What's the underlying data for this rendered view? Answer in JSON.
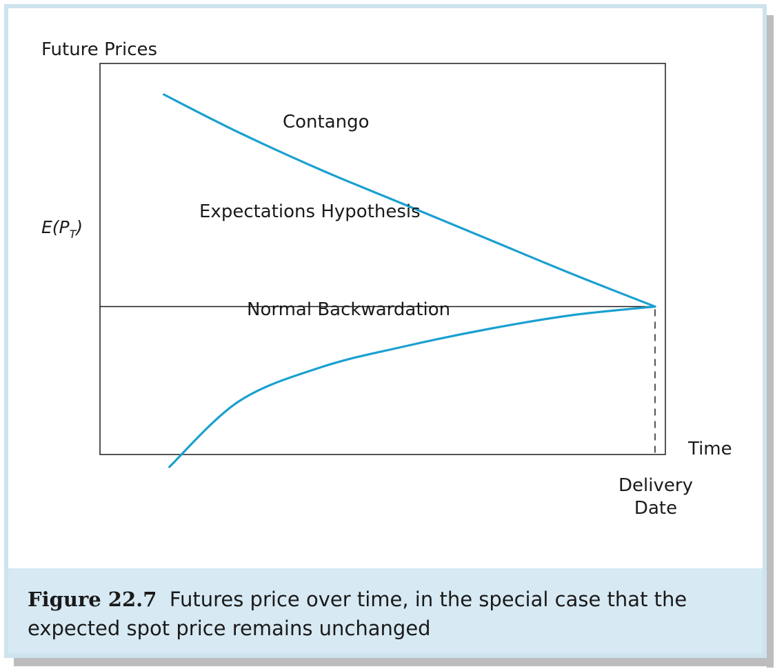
{
  "chart_data": {
    "type": "line",
    "ylabel": "Future Prices",
    "xlabel": "Time",
    "x_tick": "Delivery Date",
    "y_tick": {
      "main": "E(P",
      "sub": "T",
      "close": ")"
    },
    "xlim": [
      0,
      1
    ],
    "ylim": [
      0,
      1
    ],
    "grid": false,
    "series": [
      {
        "name": "Contango",
        "color": "#1aa0d0",
        "x": [
          0.115,
          0.25,
          0.4,
          0.55,
          0.7,
          0.85,
          1.0
        ],
        "y": [
          0.91,
          0.8,
          0.69,
          0.59,
          0.49,
          0.39,
          0.295
        ]
      },
      {
        "name": "Expectations Hypothesis",
        "color": "#1a1a1a",
        "x": [
          0,
          1.0
        ],
        "y": [
          0.295,
          0.295
        ]
      },
      {
        "name": "Normal Backwardation",
        "color": "#1aa0d0",
        "x": [
          0.125,
          0.25,
          0.4,
          0.55,
          0.7,
          0.85,
          1.0
        ],
        "y": [
          -0.17,
          0.02,
          0.12,
          0.18,
          0.23,
          0.27,
          0.295
        ]
      }
    ]
  },
  "caption": {
    "fig_num": "Figure 22.7",
    "text": "Futures price over time, in the special case that the expected spot price remains unchanged"
  }
}
